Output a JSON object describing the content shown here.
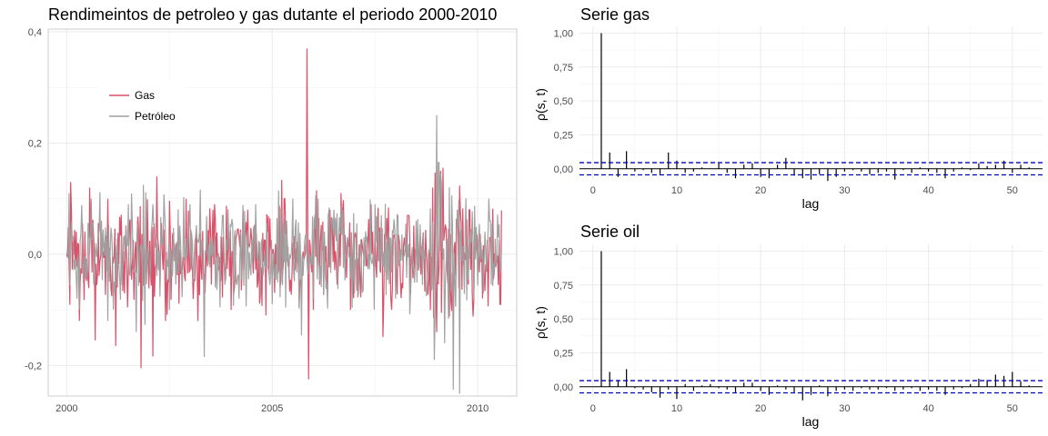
{
  "chart_data": [
    {
      "type": "line",
      "title": "Rendimeintos de petroleo y gas dutante el periodo 2000-2010",
      "xlabel": "",
      "ylabel": "",
      "x_range": [
        2000,
        2010.58
      ],
      "xlim": [
        1999.55,
        2010.95
      ],
      "ylim": [
        -0.255,
        0.405
      ],
      "x_ticks": [
        2000,
        2005,
        2010
      ],
      "x_tick_labels": [
        "2000",
        "2005",
        "2010"
      ],
      "y_ticks": [
        -0.2,
        0.0,
        0.2,
        0.4
      ],
      "y_tick_labels": [
        "-0,2",
        "0,0",
        "0,2",
        "0,4"
      ],
      "grid": true,
      "legend_position": "top-left",
      "series": [
        {
          "name": "Gas",
          "color": "#dc5069",
          "values_per_week": 551,
          "anchors": [
            [
              2000.0,
              0.0
            ],
            [
              2000.1,
              0.13
            ],
            [
              2000.3,
              -0.12
            ],
            [
              2000.55,
              0.12
            ],
            [
              2000.7,
              -0.155
            ],
            [
              2001.0,
              0.1
            ],
            [
              2001.2,
              -0.165
            ],
            [
              2001.8,
              -0.205
            ],
            [
              2002.2,
              0.14
            ],
            [
              2002.4,
              -0.12
            ],
            [
              2002.9,
              0.1
            ],
            [
              2003.2,
              -0.12
            ],
            [
              2003.6,
              0.09
            ],
            [
              2004.0,
              -0.1
            ],
            [
              2004.4,
              0.08
            ],
            [
              2004.85,
              -0.11
            ],
            [
              2005.3,
              0.1
            ],
            [
              2005.85,
              0.37
            ],
            [
              2005.88,
              -0.225
            ],
            [
              2006.0,
              -0.1
            ],
            [
              2006.4,
              0.08
            ],
            [
              2006.9,
              -0.1
            ],
            [
              2007.4,
              0.09
            ],
            [
              2007.9,
              -0.1
            ],
            [
              2008.3,
              0.07
            ],
            [
              2008.9,
              0.12
            ],
            [
              2009.0,
              -0.14
            ],
            [
              2009.1,
              0.15
            ],
            [
              2009.4,
              -0.12
            ],
            [
              2009.8,
              0.08
            ],
            [
              2010.3,
              0.03
            ],
            [
              2010.55,
              -0.09
            ]
          ]
        },
        {
          "name": "Petróleo",
          "color": "#9e9e9e",
          "values_per_week": 551,
          "anchors": [
            [
              2000.0,
              0.0
            ],
            [
              2000.05,
              0.11
            ],
            [
              2000.3,
              -0.1
            ],
            [
              2000.6,
              0.1
            ],
            [
              2001.0,
              -0.12
            ],
            [
              2001.5,
              0.09
            ],
            [
              2001.7,
              -0.14
            ],
            [
              2002.1,
              0.09
            ],
            [
              2002.5,
              -0.1
            ],
            [
              2003.0,
              0.09
            ],
            [
              2003.35,
              -0.185
            ],
            [
              2003.8,
              0.07
            ],
            [
              2004.2,
              -0.08
            ],
            [
              2004.6,
              0.09
            ],
            [
              2005.0,
              -0.09
            ],
            [
              2005.5,
              0.1
            ],
            [
              2006.0,
              -0.08
            ],
            [
              2006.5,
              0.08
            ],
            [
              2007.0,
              -0.07
            ],
            [
              2007.5,
              0.09
            ],
            [
              2008.0,
              -0.08
            ],
            [
              2008.5,
              0.06
            ],
            [
              2008.95,
              -0.19
            ],
            [
              2009.0,
              0.25
            ],
            [
              2009.05,
              0.165
            ],
            [
              2009.2,
              -0.16
            ],
            [
              2009.5,
              0.08
            ],
            [
              2009.9,
              -0.08
            ],
            [
              2010.3,
              0.06
            ],
            [
              2010.55,
              -0.03
            ]
          ]
        }
      ]
    },
    {
      "type": "bar",
      "title": "Serie gas",
      "xlabel": "lag",
      "ylabel": "ρ(s, t)",
      "xlim": [
        -1.6,
        53.6
      ],
      "ylim": [
        -0.075,
        1.05
      ],
      "x_ticks": [
        0,
        10,
        20,
        30,
        40,
        50
      ],
      "x_tick_labels": [
        "0",
        "10",
        "20",
        "30",
        "40",
        "50"
      ],
      "y_ticks": [
        0.0,
        0.25,
        0.5,
        0.75,
        1.0
      ],
      "y_tick_labels": [
        "0,00",
        "0,25",
        "0,50",
        "0,75",
        "1,00"
      ],
      "confidence_band": [
        -0.045,
        0.045
      ],
      "lags": [
        1,
        2,
        3,
        4,
        5,
        6,
        7,
        8,
        9,
        10,
        11,
        12,
        13,
        14,
        15,
        16,
        17,
        18,
        19,
        20,
        21,
        22,
        23,
        24,
        25,
        26,
        27,
        28,
        29,
        30,
        31,
        32,
        33,
        34,
        35,
        36,
        37,
        38,
        39,
        40,
        41,
        42,
        43,
        44,
        45,
        46,
        47,
        48,
        49,
        50,
        51,
        52
      ],
      "values": [
        1.0,
        0.12,
        -0.06,
        0.13,
        -0.02,
        -0.01,
        -0.03,
        -0.04,
        0.12,
        0.06,
        -0.03,
        -0.02,
        0.01,
        0.0,
        0.04,
        -0.03,
        -0.07,
        0.03,
        0.04,
        -0.06,
        -0.07,
        0.03,
        0.08,
        -0.05,
        -0.07,
        -0.08,
        -0.04,
        -0.09,
        -0.06,
        -0.02,
        -0.01,
        -0.02,
        -0.04,
        -0.03,
        -0.02,
        -0.08,
        -0.01,
        -0.03,
        0.01,
        -0.02,
        -0.03,
        -0.07,
        -0.02,
        0.01,
        -0.01,
        0.04,
        0.02,
        0.03,
        0.06,
        -0.03,
        0.03,
        0.01
      ]
    },
    {
      "type": "bar",
      "title": "Serie oil",
      "xlabel": "lag",
      "ylabel": "ρ(s, t)",
      "xlim": [
        -1.6,
        53.6
      ],
      "ylim": [
        -0.075,
        1.05
      ],
      "x_ticks": [
        0,
        10,
        20,
        30,
        40,
        50
      ],
      "x_tick_labels": [
        "0",
        "10",
        "20",
        "30",
        "40",
        "50"
      ],
      "y_ticks": [
        0.0,
        0.25,
        0.5,
        0.75,
        1.0
      ],
      "y_tick_labels": [
        "0,00",
        "0,25",
        "0,50",
        "0,75",
        "1,00"
      ],
      "confidence_band": [
        -0.045,
        0.045
      ],
      "lags": [
        1,
        2,
        3,
        4,
        5,
        6,
        7,
        8,
        9,
        10,
        11,
        12,
        13,
        14,
        15,
        16,
        17,
        18,
        19,
        20,
        21,
        22,
        23,
        24,
        25,
        26,
        27,
        28,
        29,
        30,
        31,
        32,
        33,
        34,
        35,
        36,
        37,
        38,
        39,
        40,
        41,
        42,
        43,
        44,
        45,
        46,
        47,
        48,
        49,
        50,
        51,
        52
      ],
      "values": [
        1.0,
        0.11,
        0.05,
        0.13,
        -0.01,
        -0.02,
        -0.04,
        -0.08,
        -0.02,
        -0.09,
        0.02,
        -0.03,
        0.01,
        0.02,
        -0.01,
        -0.02,
        -0.04,
        0.03,
        0.03,
        -0.03,
        -0.06,
        0.01,
        -0.02,
        -0.04,
        -0.1,
        -0.06,
        0.01,
        -0.07,
        -0.03,
        -0.02,
        -0.03,
        -0.01,
        -0.02,
        -0.02,
        -0.01,
        -0.03,
        -0.02,
        -0.01,
        -0.03,
        -0.02,
        -0.03,
        -0.06,
        -0.02,
        -0.01,
        0.02,
        0.06,
        0.05,
        0.09,
        0.08,
        0.11,
        0.04,
        0.01
      ]
    }
  ]
}
